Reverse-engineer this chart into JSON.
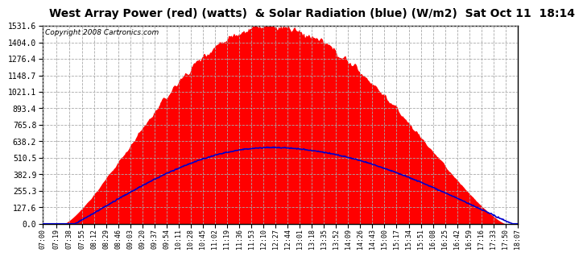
{
  "title": "West Array Power (red) (watts)  & Solar Radiation (blue) (W/m2)  Sat Oct 11  18:14",
  "copyright": "Copyright 2008 Cartronics.com",
  "y_ticks": [
    0.0,
    127.6,
    255.3,
    382.9,
    510.5,
    638.2,
    765.8,
    893.4,
    1021.1,
    1148.7,
    1276.4,
    1404.0,
    1531.6
  ],
  "y_max": 1531.6,
  "y_min": 0.0,
  "bg_color": "#ffffff",
  "plot_bg_color": "#ffffff",
  "grid_color": "#aaaaaa",
  "red_fill_color": "#ff0000",
  "blue_line_color": "#0000cc",
  "title_fontsize": 10,
  "copyright_fontsize": 6.5,
  "x_tick_fontsize": 6,
  "y_tick_fontsize": 7,
  "x_tick_labels": [
    "07:00",
    "07:19",
    "07:38",
    "07:55",
    "08:12",
    "08:29",
    "08:46",
    "09:03",
    "09:20",
    "09:37",
    "09:54",
    "10:11",
    "10:28",
    "10:45",
    "11:02",
    "11:19",
    "11:36",
    "11:53",
    "12:10",
    "12:27",
    "12:44",
    "13:01",
    "13:18",
    "13:35",
    "13:52",
    "14:09",
    "14:26",
    "14:43",
    "15:00",
    "15:17",
    "15:34",
    "15:51",
    "16:08",
    "16:25",
    "16:42",
    "16:59",
    "17:16",
    "17:33",
    "17:50",
    "18:07"
  ]
}
